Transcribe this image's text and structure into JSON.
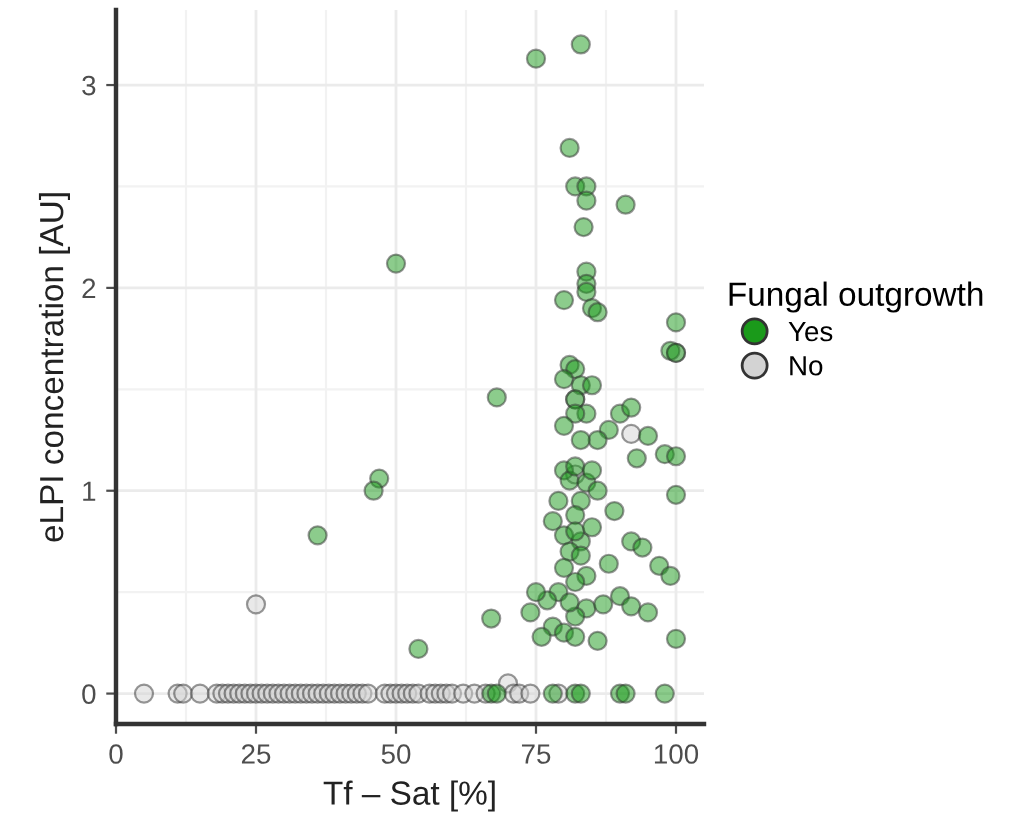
{
  "chart_data": {
    "type": "scatter",
    "xlabel": "Tf – Sat [%]",
    "ylabel": "eLPI concentration [AU]",
    "legend_title": "Fungal outgrowth",
    "legend": "right",
    "grid": true,
    "marker": "circle",
    "xlim": [
      0,
      105
    ],
    "ylim": [
      -0.15,
      3.37
    ],
    "xticks": [
      0,
      25,
      50,
      75,
      100
    ],
    "yticks": [
      0,
      1,
      2,
      3
    ],
    "series": [
      {
        "name": "Yes",
        "color": "#1a9a1a",
        "x": [
          75,
          83,
          81,
          82,
          84,
          84,
          91,
          83.5,
          50,
          84,
          84,
          84,
          80,
          85,
          86,
          100,
          99,
          100,
          47,
          46,
          68,
          36,
          54,
          81,
          82,
          80,
          83,
          85,
          82,
          84,
          82,
          90,
          92,
          88,
          95,
          93,
          98,
          100,
          80,
          81,
          82,
          84,
          85,
          86,
          83,
          82,
          89,
          100,
          78,
          80,
          83,
          92,
          94,
          88,
          97,
          99,
          81,
          84,
          82,
          80,
          79,
          77,
          75,
          84,
          87,
          82,
          90,
          92,
          95,
          74,
          78,
          80,
          82,
          86,
          76,
          100,
          67,
          82,
          83,
          81,
          85,
          79,
          86,
          80,
          83,
          67,
          68,
          78,
          82,
          83,
          90,
          91,
          98
        ],
        "values": [
          3.13,
          3.2,
          2.69,
          2.5,
          2.5,
          2.43,
          2.41,
          2.3,
          2.12,
          2.08,
          2.02,
          1.98,
          1.94,
          1.9,
          1.88,
          1.83,
          1.69,
          1.68,
          1.06,
          1.0,
          1.46,
          0.78,
          0.22,
          1.62,
          1.6,
          1.55,
          1.52,
          1.52,
          1.45,
          1.38,
          1.38,
          1.38,
          1.41,
          1.3,
          1.27,
          1.16,
          1.18,
          1.17,
          1.1,
          1.05,
          1.12,
          1.04,
          1.1,
          1.0,
          0.95,
          0.88,
          0.9,
          0.98,
          0.85,
          0.78,
          0.75,
          0.75,
          0.72,
          0.64,
          0.63,
          0.58,
          0.7,
          0.58,
          0.55,
          0.62,
          0.5,
          0.46,
          0.5,
          0.42,
          0.44,
          0.38,
          0.48,
          0.43,
          0.4,
          0.4,
          0.33,
          0.3,
          0.28,
          0.26,
          0.28,
          0.27,
          0.37,
          0.8,
          0.68,
          0.45,
          0.82,
          0.95,
          1.25,
          1.32,
          1.25,
          0,
          0,
          0,
          0,
          0,
          0,
          0,
          0
        ]
      },
      {
        "name": "No",
        "color": "#d3d3d3",
        "x": [
          5,
          11,
          12,
          15,
          18,
          19,
          20,
          21,
          22,
          23,
          24,
          25,
          26,
          27,
          28,
          29,
          30,
          31,
          32,
          33,
          34,
          35,
          36,
          37,
          38,
          39,
          40,
          41,
          42,
          43,
          44,
          45,
          48,
          49,
          50,
          51,
          52,
          53,
          54,
          56,
          57,
          58,
          59,
          60,
          62,
          64,
          66,
          70,
          71,
          72,
          74,
          79,
          25,
          82,
          82,
          92,
          100
        ],
        "values": [
          0,
          0,
          0,
          0,
          0,
          0,
          0,
          0,
          0,
          0,
          0,
          0,
          0,
          0,
          0,
          0,
          0,
          0,
          0,
          0,
          0,
          0,
          0,
          0,
          0,
          0,
          0,
          0,
          0,
          0,
          0,
          0,
          0,
          0,
          0,
          0,
          0,
          0,
          0,
          0,
          0,
          0,
          0,
          0,
          0,
          0,
          0,
          0.05,
          0,
          0,
          0,
          0,
          0.44,
          1.45,
          1.08,
          1.28,
          1.68
        ]
      }
    ]
  }
}
